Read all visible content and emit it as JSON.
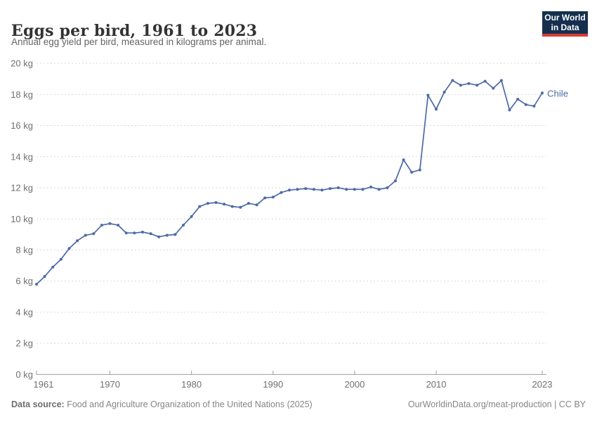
{
  "header": {
    "title": "Eggs per bird, 1961 to 2023",
    "subtitle": "Annual egg yield per bird, measured in kilograms per animal."
  },
  "logo": {
    "line1": "Our World",
    "line2": "in Data",
    "bg_color": "#15304e",
    "accent_color": "#dc3c34"
  },
  "chart_data": {
    "type": "line",
    "title": "Eggs per bird, 1961 to 2023",
    "xlabel": "",
    "ylabel": "",
    "y_unit": "kg",
    "xlim": [
      1961,
      2023
    ],
    "ylim": [
      0,
      20
    ],
    "grid": "horizontal-dashed",
    "legend_position": "end-of-line-label",
    "x_ticks": [
      {
        "value": 1961,
        "label": "1961"
      },
      {
        "value": 1970,
        "label": "1970"
      },
      {
        "value": 1980,
        "label": "1980"
      },
      {
        "value": 1990,
        "label": "1990"
      },
      {
        "value": 2000,
        "label": "2000"
      },
      {
        "value": 2010,
        "label": "2010"
      },
      {
        "value": 2023,
        "label": "2023"
      }
    ],
    "y_ticks": [
      {
        "value": 0,
        "label": "0 kg"
      },
      {
        "value": 2,
        "label": "2 kg"
      },
      {
        "value": 4,
        "label": "4 kg"
      },
      {
        "value": 6,
        "label": "6 kg"
      },
      {
        "value": 8,
        "label": "8 kg"
      },
      {
        "value": 10,
        "label": "10 kg"
      },
      {
        "value": 12,
        "label": "12 kg"
      },
      {
        "value": 14,
        "label": "14 kg"
      },
      {
        "value": 16,
        "label": "16 kg"
      },
      {
        "value": 18,
        "label": "18 kg"
      },
      {
        "value": 20,
        "label": "20 kg"
      }
    ],
    "series": [
      {
        "name": "Chile",
        "color": "#4c6aa5",
        "x": [
          1961,
          1962,
          1963,
          1964,
          1965,
          1966,
          1967,
          1968,
          1969,
          1970,
          1971,
          1972,
          1973,
          1974,
          1975,
          1976,
          1977,
          1978,
          1979,
          1980,
          1981,
          1982,
          1983,
          1984,
          1985,
          1986,
          1987,
          1988,
          1989,
          1990,
          1991,
          1992,
          1993,
          1994,
          1995,
          1996,
          1997,
          1998,
          1999,
          2000,
          2001,
          2002,
          2003,
          2004,
          2005,
          2006,
          2007,
          2008,
          2009,
          2010,
          2011,
          2012,
          2013,
          2014,
          2015,
          2016,
          2017,
          2018,
          2019,
          2020,
          2021,
          2022,
          2023
        ],
        "values": [
          5.8,
          6.3,
          6.9,
          7.4,
          8.1,
          8.6,
          8.95,
          9.05,
          9.6,
          9.7,
          9.6,
          9.1,
          9.1,
          9.15,
          9.05,
          8.85,
          8.95,
          9.0,
          9.6,
          10.15,
          10.8,
          11.0,
          11.05,
          10.95,
          10.8,
          10.75,
          11.0,
          10.9,
          11.35,
          11.4,
          11.7,
          11.85,
          11.9,
          11.95,
          11.9,
          11.85,
          11.95,
          12.0,
          11.9,
          11.9,
          11.9,
          12.05,
          11.9,
          12.0,
          12.45,
          13.8,
          13.0,
          13.15,
          17.95,
          17.05,
          18.15,
          18.9,
          18.6,
          18.7,
          18.6,
          18.85,
          18.4,
          18.9,
          17.0,
          17.7,
          17.35,
          17.25,
          18.1
        ]
      }
    ]
  },
  "footer": {
    "source_label": "Data source:",
    "source_text": " Food and Agriculture Organization of the United Nations (2025)",
    "credit": "OurWorldinData.org/meat-production | CC BY"
  }
}
